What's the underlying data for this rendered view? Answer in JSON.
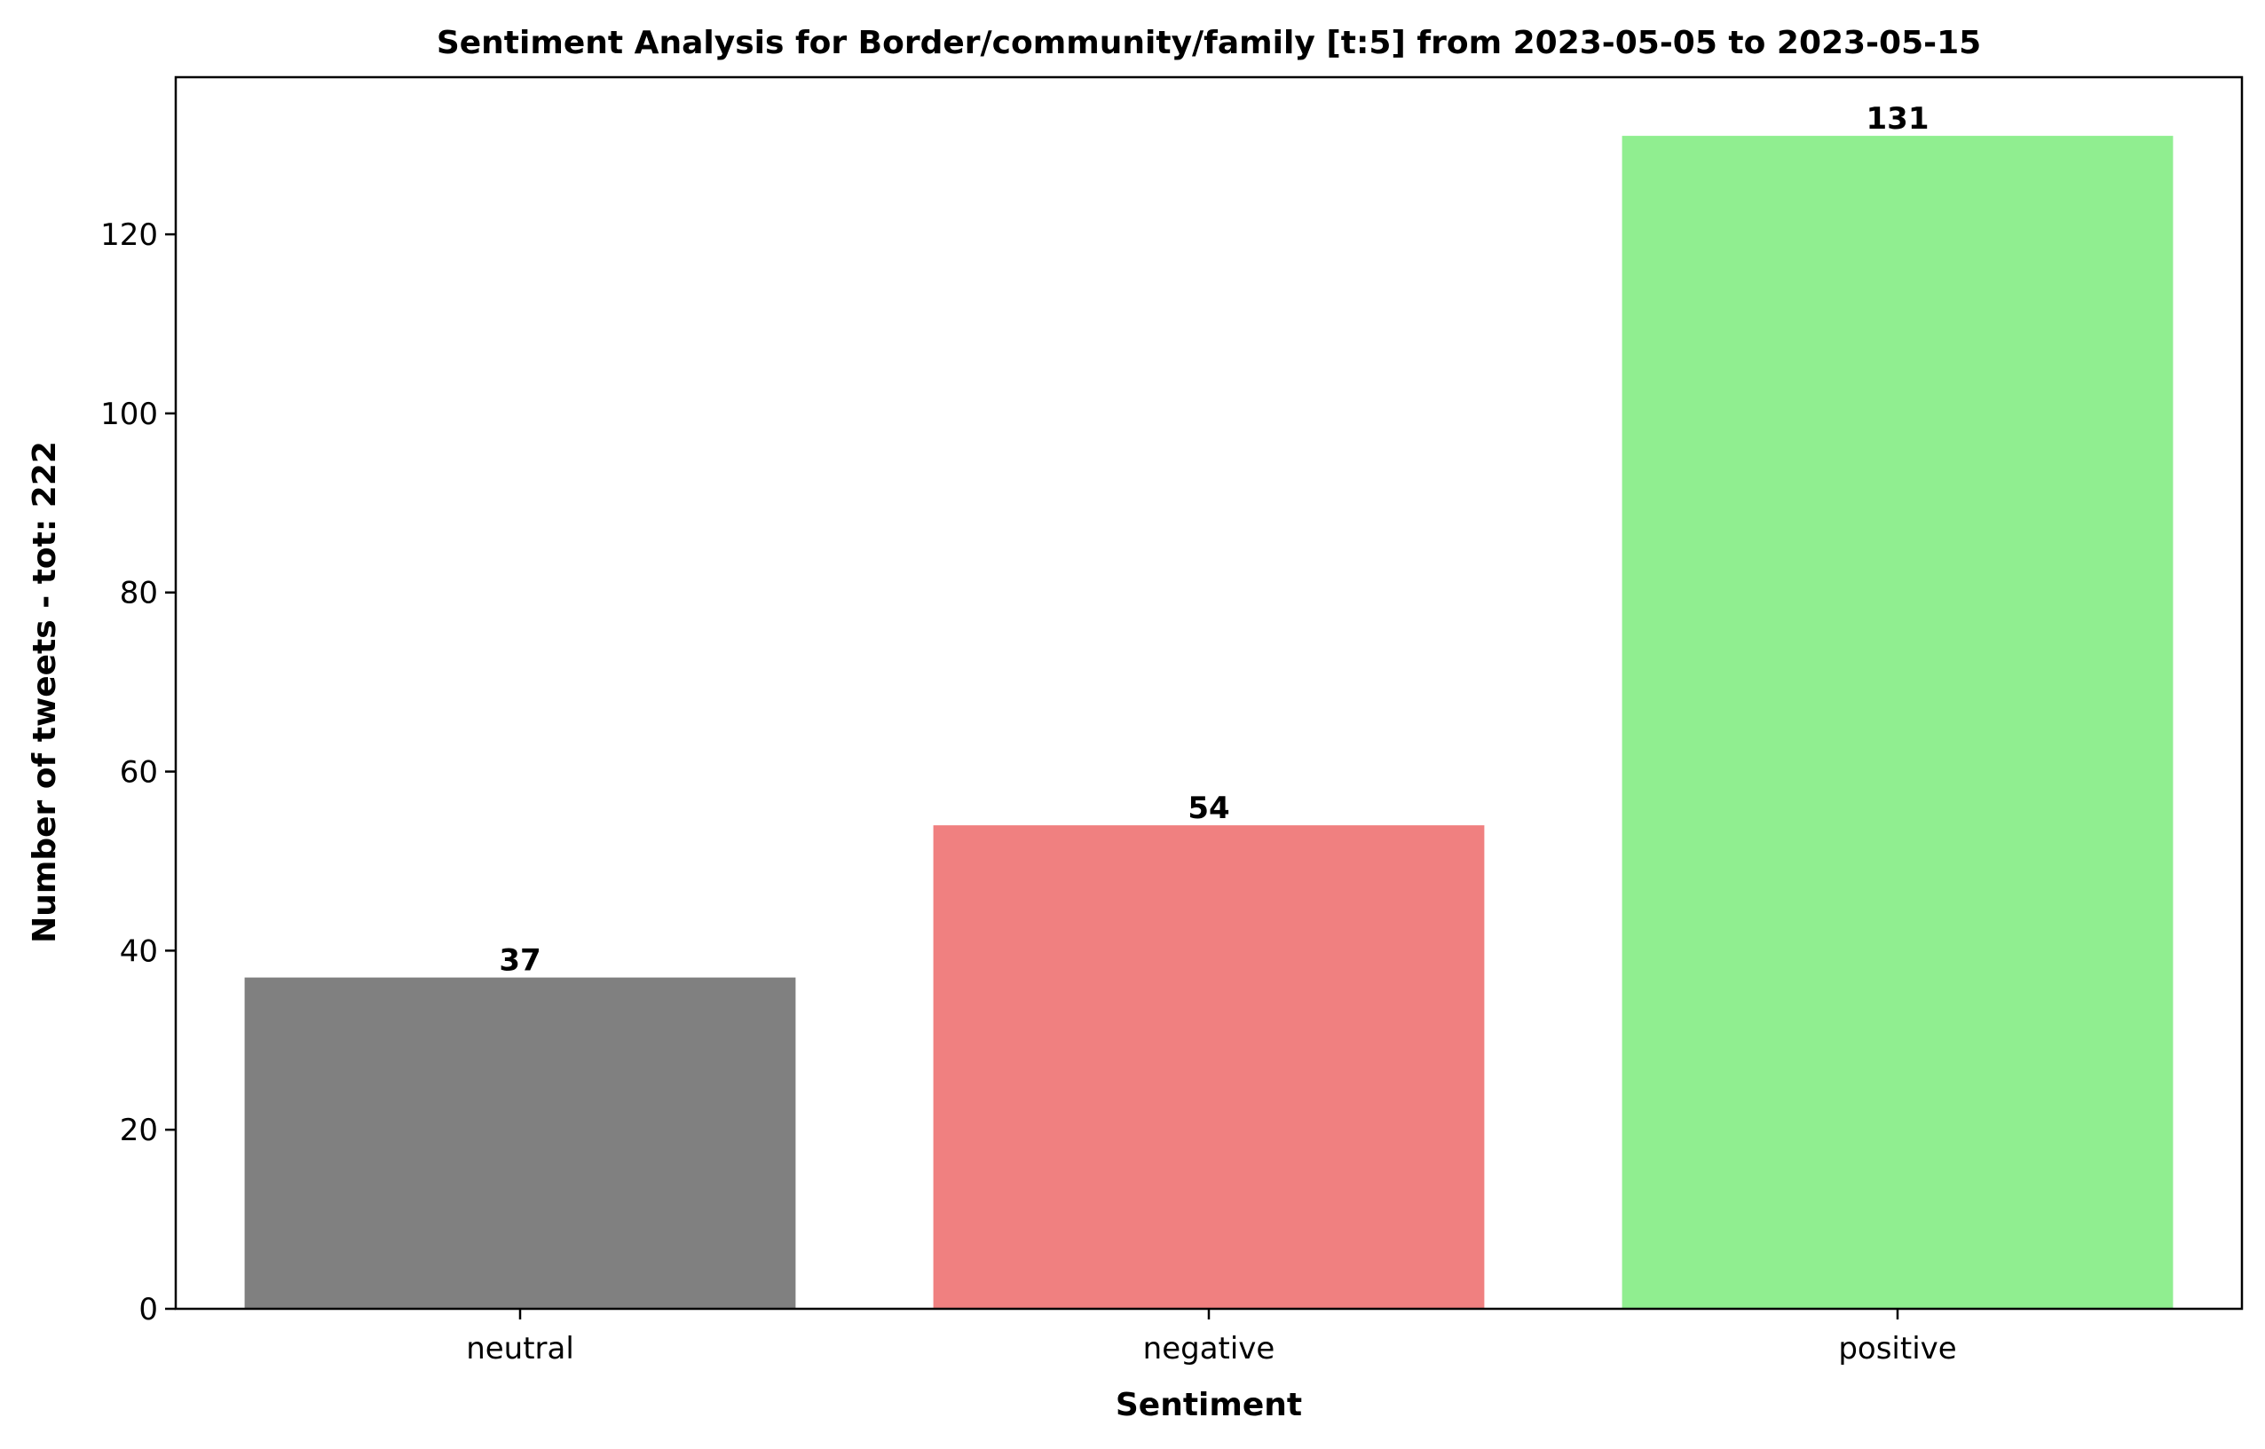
{
  "chart_data": {
    "type": "bar",
    "title": "Sentiment Analysis for Border/community/family [t:5] from 2023-05-05 to 2023-05-15",
    "xlabel": "Sentiment",
    "ylabel": "Number of tweets - tot: 222",
    "categories": [
      "neutral",
      "negative",
      "positive"
    ],
    "values": [
      37,
      54,
      131
    ],
    "value_labels": [
      "37",
      "54",
      "131"
    ],
    "colors": [
      "#808080",
      "#f08080",
      "#90ee90"
    ],
    "ylim": [
      0,
      137.55
    ],
    "yticks": [
      0,
      20,
      40,
      60,
      80,
      100,
      120
    ],
    "ytick_labels": [
      "0",
      "20",
      "40",
      "60",
      "80",
      "100",
      "120"
    ],
    "grid": false,
    "legend": "none"
  }
}
